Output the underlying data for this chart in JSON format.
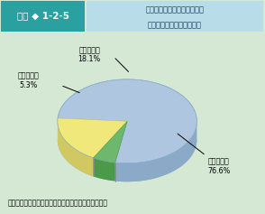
{
  "title_box_label": "図表 ◆ 1-2-5",
  "title_text_line1": "国際大会で日本選手が活躍す",
  "title_text_line2": "るための公的援助の必要性",
  "slices": [
    {
      "label_line1": "必要である",
      "label_line2": "76.6%",
      "value": 76.6,
      "color": "#aec6e0",
      "side_color": "#8aaac8"
    },
    {
      "label_line1": "わからない",
      "label_line2": "18.1%",
      "value": 18.1,
      "color": "#f0e87a",
      "side_color": "#d0c860"
    },
    {
      "label_line1": "必要でない",
      "label_line2": "5.3%",
      "value": 5.3,
      "color": "#6db86d",
      "side_color": "#4a9a4a"
    }
  ],
  "source_text": "（資料）内閣府「体力・スポーツに関する世論調査」",
  "bg_color": "#d4e8d4",
  "header_left_bg": "#2aa0a0",
  "header_right_bg": "#b8dce8",
  "header_label_color": "white",
  "header_title_color": "#1a3a5c"
}
